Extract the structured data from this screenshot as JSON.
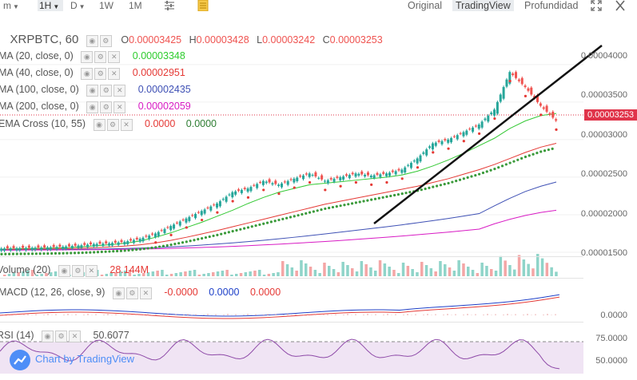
{
  "toolbar": {
    "interval_menu": "m",
    "active_interval": "1H",
    "day": "D",
    "week": "1W",
    "month": "1M",
    "views": [
      "Original",
      "TradingView",
      "Profundidad"
    ],
    "active_view": "TradingView"
  },
  "header": {
    "symbol": "XRPBTC, 60",
    "o_label": "O",
    "o_value": "0.00003425",
    "h_label": "H",
    "h_value": "0.00003428",
    "l_label": "L",
    "l_value": "0.00003242",
    "c_label": "C",
    "c_value": "0.00003253"
  },
  "legend": [
    {
      "label": "MA (20, close, 0)",
      "value": "0.00003348",
      "color": "#2ecc2e"
    },
    {
      "label": "MA (40, close, 0)",
      "value": "0.00002951",
      "color": "#e53935"
    },
    {
      "label": "MA (100, close, 0)",
      "value": "0.00002435",
      "color": "#3f51b5"
    },
    {
      "label": "MA (200, close, 0)",
      "value": "0.00002059",
      "color": "#d81bc4"
    }
  ],
  "ema_cross": {
    "label": "EMA Cross (10, 55)",
    "value1": "0.0000",
    "value2": "0.0000",
    "color1": "#e53935",
    "color2": "#2e7d32"
  },
  "volume": {
    "label": "Volume (20)",
    "value": "28.144M",
    "color": "#e53935"
  },
  "macd": {
    "label": "MACD (12, 26, close, 9)",
    "v1": "-0.0000",
    "v2": "0.0000",
    "v3": "0.0000",
    "c1": "#e53935",
    "c2": "#1e40c8",
    "c3": "#e53935"
  },
  "rsi": {
    "label": "RSI (14)",
    "value": "50.6077",
    "color": "#555555"
  },
  "watermark": "Chart by TradingView",
  "price_axis": [
    "0.00004000",
    "0.00003500",
    "0.00003000",
    "0.00002500",
    "0.00002000",
    "0.00001500"
  ],
  "last_price": "0.00003253",
  "macd_axis": "0.0000",
  "rsi_axis": [
    "75.0000",
    "50.0000"
  ],
  "colors": {
    "up": "#26a69a",
    "down": "#ef5350",
    "accent": "#4e8ef7"
  },
  "chart_data": {
    "type": "line",
    "title": "XRPBTC, 60",
    "ylim": [
      1.5e-05,
      4.2e-05
    ],
    "series": [
      {
        "name": "Close",
        "values": [
          1.55e-05,
          1.555e-05,
          1.56e-05,
          1.565e-05,
          1.575e-05,
          1.59e-05,
          1.61e-05,
          1.62e-05,
          1.64e-05,
          1.68e-05,
          1.75e-05,
          1.85e-05,
          1.95e-05,
          2.05e-05,
          2.15e-05,
          2.3e-05,
          2.35e-05,
          2.45e-05,
          2.4e-05,
          2.48e-05,
          2.55e-05,
          2.45e-05,
          2.5e-05,
          2.55e-05,
          2.52e-05,
          2.55e-05,
          2.6e-05,
          2.75e-05,
          2.95e-05,
          3e-05,
          3.1e-05,
          3.2e-05,
          3.4e-05,
          3.9e-05,
          3.7e-05,
          3.45e-05,
          3.253e-05
        ]
      },
      {
        "name": "MA (20, close, 0)",
        "values": [
          1.54e-05,
          1.545e-05,
          1.55e-05,
          1.555e-05,
          1.56e-05,
          1.57e-05,
          1.585e-05,
          1.6e-05,
          1.62e-05,
          1.65e-05,
          1.7e-05,
          1.76e-05,
          1.83e-05,
          1.9e-05,
          1.98e-05,
          2.06e-05,
          2.15e-05,
          2.23e-05,
          2.3e-05,
          2.35e-05,
          2.4e-05,
          2.42e-05,
          2.44e-05,
          2.46e-05,
          2.48e-05,
          2.5e-05,
          2.53e-05,
          2.58e-05,
          2.65e-05,
          2.73e-05,
          2.82e-05,
          2.92e-05,
          3.02e-05,
          3.15e-05,
          3.25e-05,
          3.32e-05,
          3.348e-05
        ]
      },
      {
        "name": "MA (40, close, 0)",
        "values": [
          1.535e-05,
          1.538e-05,
          1.54e-05,
          1.543e-05,
          1.547e-05,
          1.552e-05,
          1.56e-05,
          1.57e-05,
          1.582e-05,
          1.6e-05,
          1.625e-05,
          1.66e-05,
          1.7e-05,
          1.745e-05,
          1.79e-05,
          1.84e-05,
          1.89e-05,
          1.94e-05,
          1.99e-05,
          2.04e-05,
          2.09e-05,
          2.14e-05,
          2.18e-05,
          2.22e-05,
          2.26e-05,
          2.3e-05,
          2.34e-05,
          2.38e-05,
          2.43e-05,
          2.48e-05,
          2.54e-05,
          2.6e-05,
          2.67e-05,
          2.75e-05,
          2.83e-05,
          2.9e-05,
          2.951e-05
        ]
      },
      {
        "name": "MA (100, close, 0)",
        "values": [
          1.53e-05,
          1.531e-05,
          1.532e-05,
          1.534e-05,
          1.536e-05,
          1.538e-05,
          1.541e-05,
          1.545e-05,
          1.55e-05,
          1.556e-05,
          1.563e-05,
          1.572e-05,
          1.583e-05,
          1.596e-05,
          1.61e-05,
          1.625e-05,
          1.642e-05,
          1.66e-05,
          1.68e-05,
          1.7e-05,
          1.722e-05,
          1.745e-05,
          1.768e-05,
          1.792e-05,
          1.816e-05,
          1.84e-05,
          1.866e-05,
          1.893e-05,
          1.921e-05,
          1.95e-05,
          1.982e-05,
          2.015e-05,
          2.12e-05,
          2.22e-05,
          2.31e-05,
          2.38e-05,
          2.435e-05
        ]
      },
      {
        "name": "MA (200, close, 0)",
        "values": [
          1.528e-05,
          1.529e-05,
          1.53e-05,
          1.531e-05,
          1.532e-05,
          1.533e-05,
          1.535e-05,
          1.537e-05,
          1.54e-05,
          1.543e-05,
          1.547e-05,
          1.552e-05,
          1.558e-05,
          1.564e-05,
          1.571e-05,
          1.579e-05,
          1.588e-05,
          1.598e-05,
          1.608e-05,
          1.619e-05,
          1.631e-05,
          1.644e-05,
          1.657e-05,
          1.671e-05,
          1.686e-05,
          1.701e-05,
          1.717e-05,
          1.734e-05,
          1.751e-05,
          1.769e-05,
          1.788e-05,
          1.808e-05,
          1.88e-05,
          1.94e-05,
          1.99e-05,
          2.03e-05,
          2.059e-05
        ]
      }
    ]
  }
}
